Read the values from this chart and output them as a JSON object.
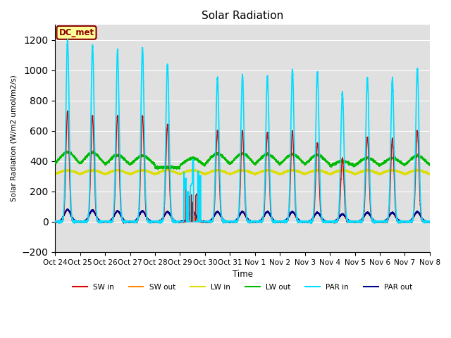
{
  "title": "Solar Radiation",
  "ylabel": "Solar Radiation (W/m2 umol/m2/s)",
  "xlabel": "Time",
  "ylim": [
    -200,
    1300
  ],
  "xlim": [
    0,
    15
  ],
  "annotation_text": "DC_met",
  "annotation_bg": "#ffff99",
  "annotation_border": "#8b0000",
  "tick_labels": [
    "Oct 24",
    "Oct 25",
    "Oct 26",
    "Oct 27",
    "Oct 28",
    "Oct 29",
    "Oct 30",
    "Oct 31",
    "Nov 1",
    "Nov 2",
    "Nov 3",
    "Nov 4",
    "Nov 5",
    "Nov 6",
    "Nov 7",
    "Nov 8"
  ],
  "colors": {
    "SW_in": "#dd0000",
    "SW_out": "#ff8800",
    "LW_in": "#dddd00",
    "LW_out": "#00bb00",
    "PAR_in": "#00ddff",
    "PAR_out": "#000088"
  },
  "n_days": 15,
  "pts_per_day": 480,
  "day_peaks_SW_in": [
    730,
    700,
    700,
    700,
    640,
    240,
    600,
    600,
    590,
    600,
    520,
    420,
    560,
    550,
    600
  ],
  "day_peaks_SW_out": [
    80,
    75,
    70,
    70,
    65,
    30,
    65,
    65,
    65,
    65,
    60,
    50,
    58,
    58,
    62
  ],
  "day_peaks_PAR_in": [
    1200,
    1165,
    1130,
    1150,
    1040,
    500,
    950,
    965,
    965,
    1005,
    990,
    855,
    950,
    945,
    1005
  ],
  "day_peaks_PAR_out": [
    80,
    75,
    70,
    70,
    65,
    70,
    65,
    65,
    65,
    65,
    60,
    50,
    60,
    60,
    65
  ],
  "LW_in_night": 300,
  "LW_in_day_add": 40,
  "LW_out_night": 355,
  "LW_out_day_add": 100,
  "LW_out_day_peaks": [
    460,
    455,
    440,
    435,
    360,
    420,
    450,
    450,
    445,
    445,
    440,
    400,
    420,
    420,
    435
  ]
}
